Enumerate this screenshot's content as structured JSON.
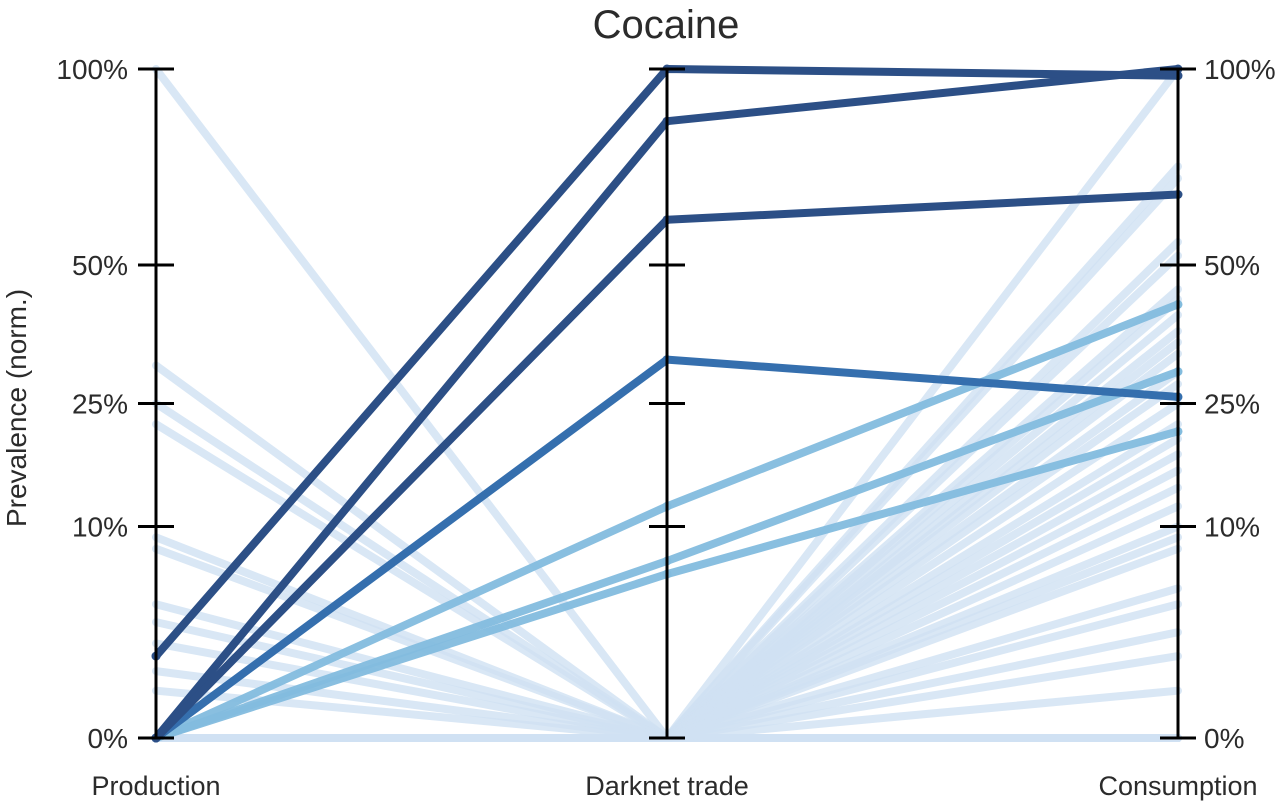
{
  "chart_data": {
    "type": "parallel-coordinates",
    "title": "Cocaine",
    "ylabel": "Prevalence (norm.)",
    "axes": [
      "Production",
      "Darknet trade",
      "Consumption"
    ],
    "yticks": [
      0,
      10,
      25,
      50,
      100
    ],
    "ytick_labels": [
      "0%",
      "10%",
      "25%",
      "50%",
      "100%"
    ],
    "y_scale": "square-root",
    "ylim": [
      0,
      100
    ],
    "grid": false,
    "colors": {
      "highlight_dark": "#2c4f86",
      "highlight_medium": "#356fae",
      "highlight_light": "#83bcde",
      "background": "#cfe1f3",
      "axis": "#000000"
    },
    "series": [
      {
        "values": [
          1.5,
          100,
          98
        ],
        "tone": "dark"
      },
      {
        "values": [
          0,
          85,
          100
        ],
        "tone": "dark"
      },
      {
        "values": [
          0,
          60,
          66
        ],
        "tone": "dark"
      },
      {
        "values": [
          0,
          32,
          26
        ],
        "tone": "medium"
      },
      {
        "values": [
          0,
          12,
          42
        ],
        "tone": "light"
      },
      {
        "values": [
          0,
          7,
          30
        ],
        "tone": "light"
      },
      {
        "values": [
          0,
          6,
          21
        ],
        "tone": "light"
      },
      {
        "values": [
          100,
          0,
          0
        ],
        "tone": "bg"
      },
      {
        "values": [
          31,
          0,
          0
        ],
        "tone": "bg"
      },
      {
        "values": [
          25,
          0,
          0
        ],
        "tone": "bg"
      },
      {
        "values": [
          22,
          0,
          0
        ],
        "tone": "bg"
      },
      {
        "values": [
          9,
          0,
          0
        ],
        "tone": "bg"
      },
      {
        "values": [
          8,
          0,
          0
        ],
        "tone": "bg"
      },
      {
        "values": [
          4,
          0,
          0
        ],
        "tone": "bg"
      },
      {
        "values": [
          3,
          0,
          0
        ],
        "tone": "bg"
      },
      {
        "values": [
          2,
          0,
          0
        ],
        "tone": "bg"
      },
      {
        "values": [
          1,
          0,
          0
        ],
        "tone": "bg"
      },
      {
        "values": [
          0.5,
          0,
          0
        ],
        "tone": "bg"
      },
      {
        "values": [
          0,
          0,
          100
        ],
        "tone": "bg"
      },
      {
        "values": [
          0,
          0,
          73
        ],
        "tone": "bg"
      },
      {
        "values": [
          0,
          0,
          70
        ],
        "tone": "bg"
      },
      {
        "values": [
          0,
          0,
          55
        ],
        "tone": "bg"
      },
      {
        "values": [
          0,
          0,
          52
        ],
        "tone": "bg"
      },
      {
        "values": [
          0,
          0,
          45
        ],
        "tone": "bg"
      },
      {
        "values": [
          0,
          0,
          43
        ],
        "tone": "bg"
      },
      {
        "values": [
          0,
          0,
          40
        ],
        "tone": "bg"
      },
      {
        "values": [
          0,
          0,
          37
        ],
        "tone": "bg"
      },
      {
        "values": [
          0,
          0,
          35
        ],
        "tone": "bg"
      },
      {
        "values": [
          0,
          0,
          33
        ],
        "tone": "bg"
      },
      {
        "values": [
          0,
          0,
          30
        ],
        "tone": "bg"
      },
      {
        "values": [
          0,
          0,
          28
        ],
        "tone": "bg"
      },
      {
        "values": [
          0,
          0,
          25
        ],
        "tone": "bg"
      },
      {
        "values": [
          0,
          0,
          22
        ],
        "tone": "bg"
      },
      {
        "values": [
          0,
          0,
          20
        ],
        "tone": "bg"
      },
      {
        "values": [
          0,
          0,
          18
        ],
        "tone": "bg"
      },
      {
        "values": [
          0,
          0,
          16
        ],
        "tone": "bg"
      },
      {
        "values": [
          0,
          0,
          14
        ],
        "tone": "bg"
      },
      {
        "values": [
          0,
          0,
          12
        ],
        "tone": "bg"
      },
      {
        "values": [
          0,
          0,
          10
        ],
        "tone": "bg"
      },
      {
        "values": [
          0,
          0,
          9
        ],
        "tone": "bg"
      },
      {
        "values": [
          0,
          0,
          8
        ],
        "tone": "bg"
      },
      {
        "values": [
          0,
          0,
          5
        ],
        "tone": "bg"
      },
      {
        "values": [
          0,
          0,
          4
        ],
        "tone": "bg"
      },
      {
        "values": [
          0,
          0,
          2.5
        ],
        "tone": "bg"
      },
      {
        "values": [
          0,
          0,
          1.5
        ],
        "tone": "bg"
      },
      {
        "values": [
          0,
          0,
          0.5
        ],
        "tone": "bg"
      }
    ]
  }
}
